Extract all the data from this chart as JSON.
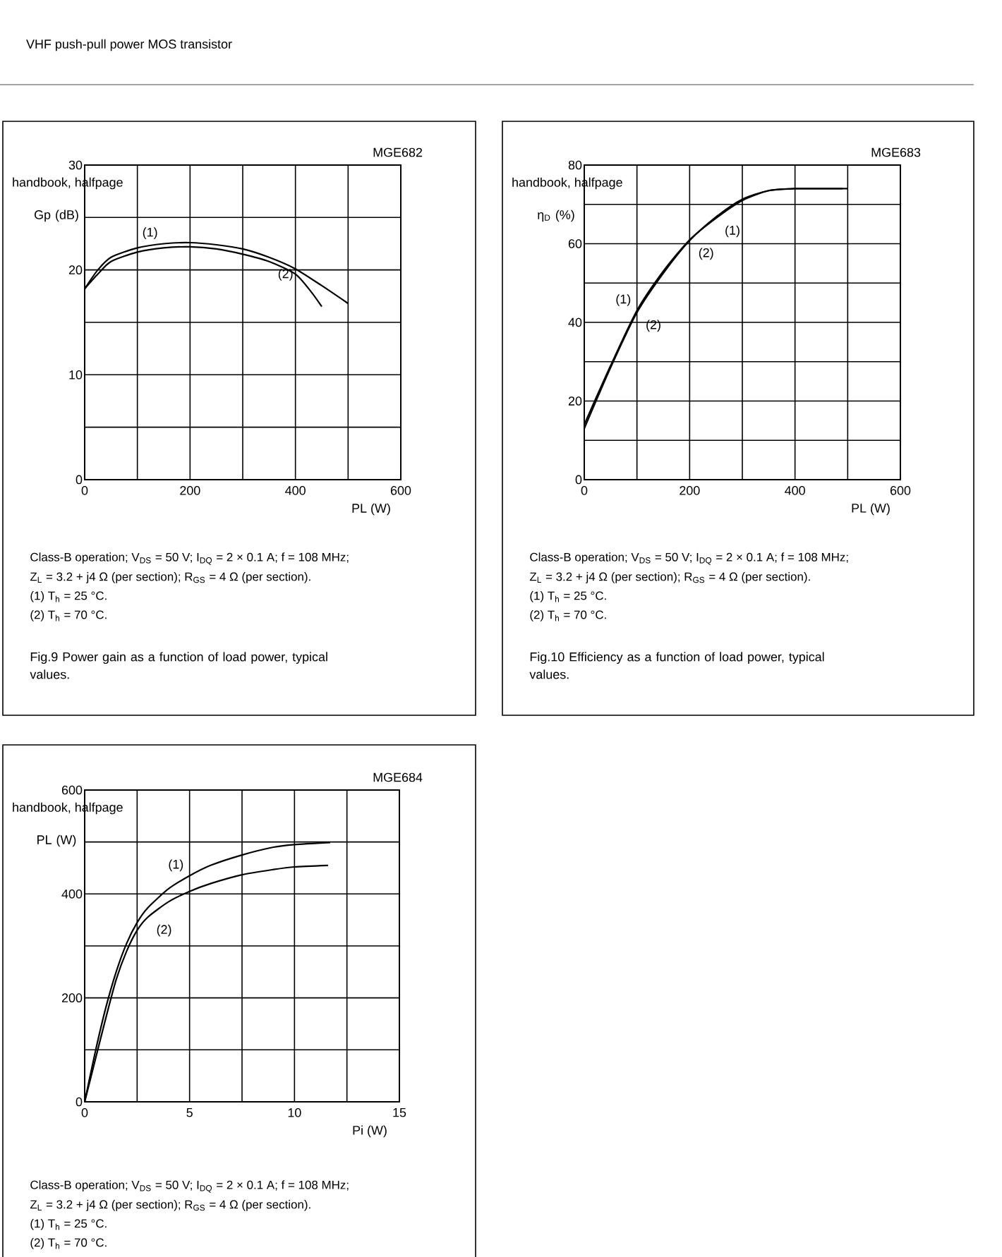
{
  "chart_data": [
    {
      "type": "line",
      "subtitle": "VHF push-pull power MOS transistor",
      "title": "Fig.9 Power gain as a function of load power, typical values.",
      "xlabel": "PL (W)",
      "ylabel": "Gp (dB)",
      "xlim": [
        0,
        600
      ],
      "ylim": [
        0,
        30
      ],
      "xticks": [
        0,
        {
          "value": 100,
          "label": null
        },
        200,
        {
          "value": 300,
          "label": null
        },
        400,
        {
          "value": 500,
          "label": null
        },
        600
      ],
      "yticks": [
        0,
        {
          "value": 5,
          "label": null
        },
        10,
        {
          "value": 15,
          "label": null
        },
        20,
        {
          "value": 25,
          "label": null
        },
        30
      ],
      "grid": true,
      "line_style": "solid",
      "series": [
        {
          "color": "#000000",
          "x": [
            0,
            25,
            50,
            100,
            150,
            200,
            250,
            300,
            350,
            400,
            450,
            500
          ],
          "values": [
            18.2,
            20.0,
            21.2,
            22.1,
            22.5,
            22.6,
            22.4,
            22.0,
            21.2,
            20.1,
            18.5,
            16.8
          ]
        },
        {
          "color": "#000000",
          "x": [
            0,
            25,
            50,
            100,
            150,
            200,
            250,
            300,
            350,
            400,
            430,
            450
          ],
          "values": [
            18.2,
            19.6,
            20.8,
            21.7,
            22.1,
            22.2,
            22.0,
            21.5,
            20.8,
            19.6,
            17.9,
            16.5
          ]
        }
      ],
      "annotations": [
        "MGE682",
        "handbook, halfpage",
        "Class-B operation; V$_{DS}$ = 50 V; I$_{DQ}$ = 2 × 0.1 A; f = 108 MHz;",
        "Z$_{L}$ = 3.2 + j4 Ω (per section); R$_{GS}$ = 4 Ω (per section).",
        "(1) T$_{h}$ = 25 °C.",
        "(2) T$_{h}$ = 70 °C.",
        {
          "text": "(1)",
          "x": 150,
          "y": 22.5
        },
        {
          "text": "(2)",
          "x": 350,
          "y": 20.8
        }
      ]
    },
    {
      "type": "line",
      "title": "Fig.10 Efficiency as a function of load power, typical values.",
      "xlabel": "PL (W)",
      "ylabel": "η$_{D}$ (%)",
      "xlim": [
        0,
        600
      ],
      "ylim": [
        0,
        80
      ],
      "xticks": [
        0,
        {
          "value": 100,
          "label": null
        },
        200,
        {
          "value": 300,
          "label": null
        },
        400,
        {
          "value": 500,
          "label": null
        },
        600
      ],
      "yticks": [
        0,
        {
          "value": 10,
          "label": null
        },
        20,
        {
          "value": 30,
          "label": null
        },
        40,
        {
          "value": 50,
          "label": null
        },
        60,
        {
          "value": 70,
          "label": null
        },
        80
      ],
      "grid": true,
      "line_style": "solid",
      "series": [
        {
          "color": "#000000",
          "x": [
            0,
            50,
            100,
            150,
            200,
            250,
            300,
            350,
            400,
            450,
            500
          ],
          "values": [
            14,
            29,
            43,
            53,
            61,
            66.5,
            71,
            73.5,
            74,
            74,
            74
          ]
        },
        {
          "color": "#000000",
          "x": [
            0,
            50,
            100,
            150,
            200,
            250,
            300,
            350,
            400,
            450,
            490
          ],
          "values": [
            13,
            28.5,
            42.5,
            52.5,
            60.8,
            66.8,
            71.3,
            73.5,
            74,
            74,
            74
          ]
        }
      ],
      "annotations": [
        "MGE683",
        "handbook, halfpage",
        "Class-B operation; V$_{DS}$ = 50 V; I$_{DQ}$ = 2 × 0.1 A; f = 108 MHz;",
        "Z$_{L}$ = 3.2 + j4 Ω (per section); R$_{GS}$ = 4 Ω (per section).",
        "(1) T$_{h}$ = 25 °C.",
        "(2) T$_{h}$ = 70 °C.",
        {
          "text": "(1)",
          "x": 100,
          "y": 43
        },
        {
          "text": "(2)",
          "x": 100,
          "y": 42.5
        },
        {
          "text": "(2)",
          "x": 200,
          "y": 60.8
        },
        {
          "text": "(1)",
          "x": 250,
          "y": 66.5
        }
      ]
    },
    {
      "type": "line",
      "xlabel": "Pi (W)",
      "ylabel": "PL (W)",
      "xlim": [
        0,
        15
      ],
      "ylim": [
        0,
        600
      ],
      "xticks": [
        0,
        {
          "value": 2.5,
          "label": null
        },
        5,
        {
          "value": 7.5,
          "label": null
        },
        10,
        {
          "value": 12.5,
          "label": null
        },
        15
      ],
      "yticks": [
        0,
        {
          "value": 100,
          "label": null
        },
        200,
        {
          "value": 300,
          "label": null
        },
        400,
        {
          "value": 500,
          "label": null
        },
        600
      ],
      "grid": true,
      "line_style": "solid",
      "series": [
        {
          "color": "#000000",
          "x": [
            0,
            0.5,
            1,
            1.5,
            2,
            2.5,
            3,
            4,
            5,
            6,
            7.5,
            9,
            10,
            11.7
          ],
          "values": [
            0,
            95,
            180,
            250,
            305,
            345,
            373,
            410,
            435,
            455,
            475,
            490,
            495,
            499
          ]
        },
        {
          "color": "#000000",
          "x": [
            0,
            0.5,
            1,
            1.5,
            2,
            2.5,
            3,
            4,
            5,
            6,
            7.5,
            9,
            10,
            11.6
          ],
          "values": [
            0,
            80,
            160,
            235,
            290,
            330,
            355,
            385,
            405,
            420,
            437,
            447,
            452,
            455
          ]
        }
      ],
      "annotations": [
        "MGE684",
        "handbook, halfpage",
        "Class-B operation; V$_{DS}$ = 50 V; I$_{DQ}$ = 2 × 0.1 A; f = 108 MHz;",
        "Z$_{L}$ = 3.2 + j4 Ω (per section); R$_{GS}$ = 4 Ω (per section).",
        "(1) T$_{h}$ = 25 °C.",
        "(2) T$_{h}$ = 70 °C.",
        {
          "text": "(1)",
          "x": 5,
          "y": 435
        },
        {
          "text": "(2)",
          "x": 3,
          "y": 355
        }
      ]
    }
  ]
}
